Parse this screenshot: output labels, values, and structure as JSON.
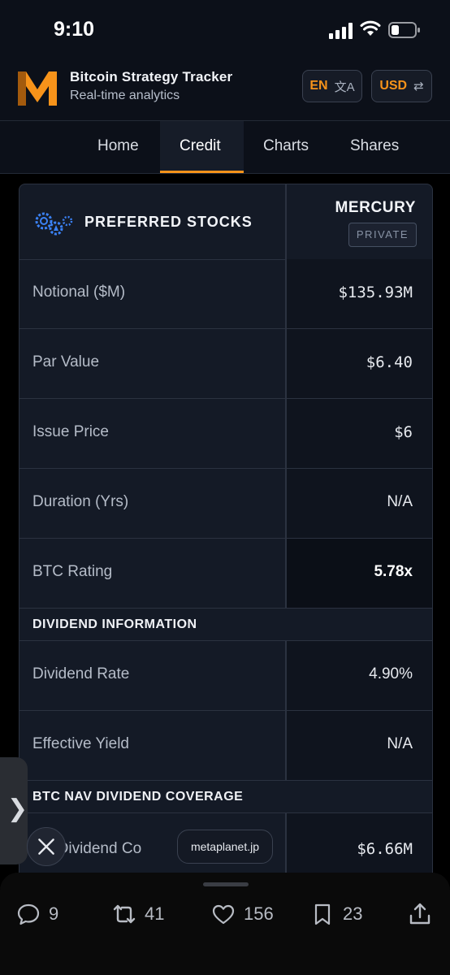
{
  "status_bar": {
    "time": "9:10"
  },
  "header": {
    "title": "Bitcoin Strategy Tracker",
    "subtitle": "Real-time analytics",
    "language_pill": {
      "label": "EN",
      "icon": "translate-icon"
    },
    "currency_pill": {
      "label": "USD",
      "icon": "swap-icon"
    },
    "accent_color": "#f7931a"
  },
  "tabs": [
    {
      "label": "Home",
      "active": false
    },
    {
      "label": "Credit",
      "active": true
    },
    {
      "label": "Charts",
      "active": false
    },
    {
      "label": "Shares",
      "active": false
    }
  ],
  "table": {
    "title": "PREFERRED STOCKS",
    "column": {
      "name": "MERCURY",
      "badge": "PRIVATE"
    },
    "rows": [
      {
        "label": "Notional ($M)",
        "value": "$135.93M"
      },
      {
        "label": "Par Value",
        "value": "$6.40"
      },
      {
        "label": "Issue Price",
        "value": "$6"
      },
      {
        "label": "Duration (Yrs)",
        "value": "N/A"
      },
      {
        "label": "BTC Rating",
        "value": "5.78x"
      }
    ],
    "dividend_section": {
      "title": "DIVIDEND INFORMATION",
      "rows": [
        {
          "label": "Dividend Rate",
          "value": "4.90%"
        },
        {
          "label": "Effective Yield",
          "value": "N/A"
        }
      ]
    },
    "coverage_section": {
      "title": "BTC NAV DIVIDEND COVERAGE",
      "rows": [
        {
          "label": "ual Dividend Co",
          "value": "$6.66M"
        }
      ]
    }
  },
  "overlay": {
    "url_chip": "metaplanet.jp",
    "side_tab_glyph": "❯"
  },
  "actions": [
    {
      "icon": "reply-icon",
      "count": "9"
    },
    {
      "icon": "repost-icon",
      "count": "41"
    },
    {
      "icon": "like-icon",
      "count": "156"
    },
    {
      "icon": "bookmark-icon",
      "count": "23"
    },
    {
      "icon": "share-icon",
      "count": ""
    }
  ]
}
